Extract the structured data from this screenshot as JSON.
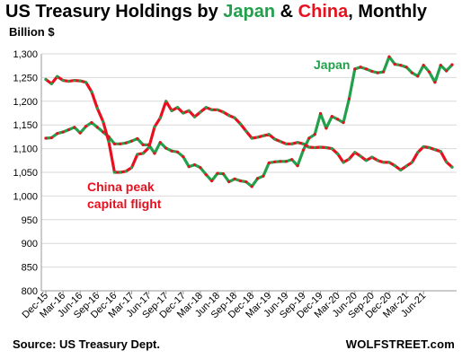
{
  "chart_data": {
    "type": "line",
    "title": {
      "prefix": "US Treasury Holdings by ",
      "japan": "Japan",
      "amp": " & ",
      "china": "China",
      "suffix": ", Monthly"
    },
    "ylabel": "Billion $",
    "ylim": [
      800,
      1300
    ],
    "yticks": [
      "800",
      "850",
      "900",
      "950",
      "1,000",
      "1,050",
      "1,100",
      "1,150",
      "1,200",
      "1,250",
      "1,300"
    ],
    "x_tick_labels": [
      "Dec-15",
      "Mar-16",
      "Jun-16",
      "Sep-16",
      "Dec-16",
      "Mar-17",
      "Jun-17",
      "Sep-17",
      "Dec-17",
      "Mar-18",
      "Jun-18",
      "Sep-18",
      "Dec-18",
      "Mar-19",
      "Jun-19",
      "Sep-19",
      "Dec-19",
      "Mar-20",
      "Jun-20",
      "Sep-20",
      "Dec-20",
      "Mar-21",
      "Jun-21"
    ],
    "x_start": "Dec-15",
    "x_end": "Jun-21",
    "grid": true,
    "series": [
      {
        "name": "Japan",
        "color": "#22a04b",
        "values": [
          1122,
          1123,
          1132,
          1135,
          1140,
          1145,
          1133,
          1147,
          1155,
          1145,
          1135,
          1125,
          1110,
          1110,
          1112,
          1116,
          1121,
          1108,
          1108,
          1090,
          1113,
          1101,
          1095,
          1093,
          1083,
          1062,
          1066,
          1060,
          1045,
          1032,
          1048,
          1047,
          1030,
          1036,
          1032,
          1030,
          1020,
          1037,
          1042,
          1070,
          1072,
          1073,
          1073,
          1077,
          1064,
          1097,
          1122,
          1130,
          1174,
          1143,
          1168,
          1162,
          1155,
          1205,
          1268,
          1272,
          1268,
          1263,
          1260,
          1262,
          1294,
          1278,
          1276,
          1272,
          1260,
          1253,
          1276,
          1262,
          1240,
          1276,
          1264,
          1277
        ]
      },
      {
        "name": "China",
        "color": "#e8101e",
        "values": [
          1246,
          1237,
          1252,
          1244,
          1242,
          1244,
          1243,
          1240,
          1220,
          1185,
          1157,
          1115,
          1050,
          1050,
          1052,
          1060,
          1088,
          1090,
          1102,
          1146,
          1165,
          1200,
          1180,
          1187,
          1175,
          1180,
          1167,
          1177,
          1187,
          1182,
          1182,
          1177,
          1170,
          1165,
          1152,
          1137,
          1122,
          1124,
          1127,
          1130,
          1120,
          1115,
          1110,
          1110,
          1113,
          1110,
          1103,
          1102,
          1103,
          1102,
          1100,
          1089,
          1071,
          1078,
          1092,
          1084,
          1075,
          1082,
          1075,
          1071,
          1071,
          1064,
          1055,
          1063,
          1071,
          1092,
          1104,
          1102,
          1098,
          1094,
          1072,
          1061
        ]
      }
    ],
    "annotations": [
      {
        "text": "Japan",
        "color": "#22a04b"
      },
      {
        "lines": [
          "China peak",
          "capital flight"
        ],
        "color": "#e8101e"
      }
    ],
    "source": "Source: US Treasury Dept.",
    "brand": "WOLFSTREET.com"
  }
}
